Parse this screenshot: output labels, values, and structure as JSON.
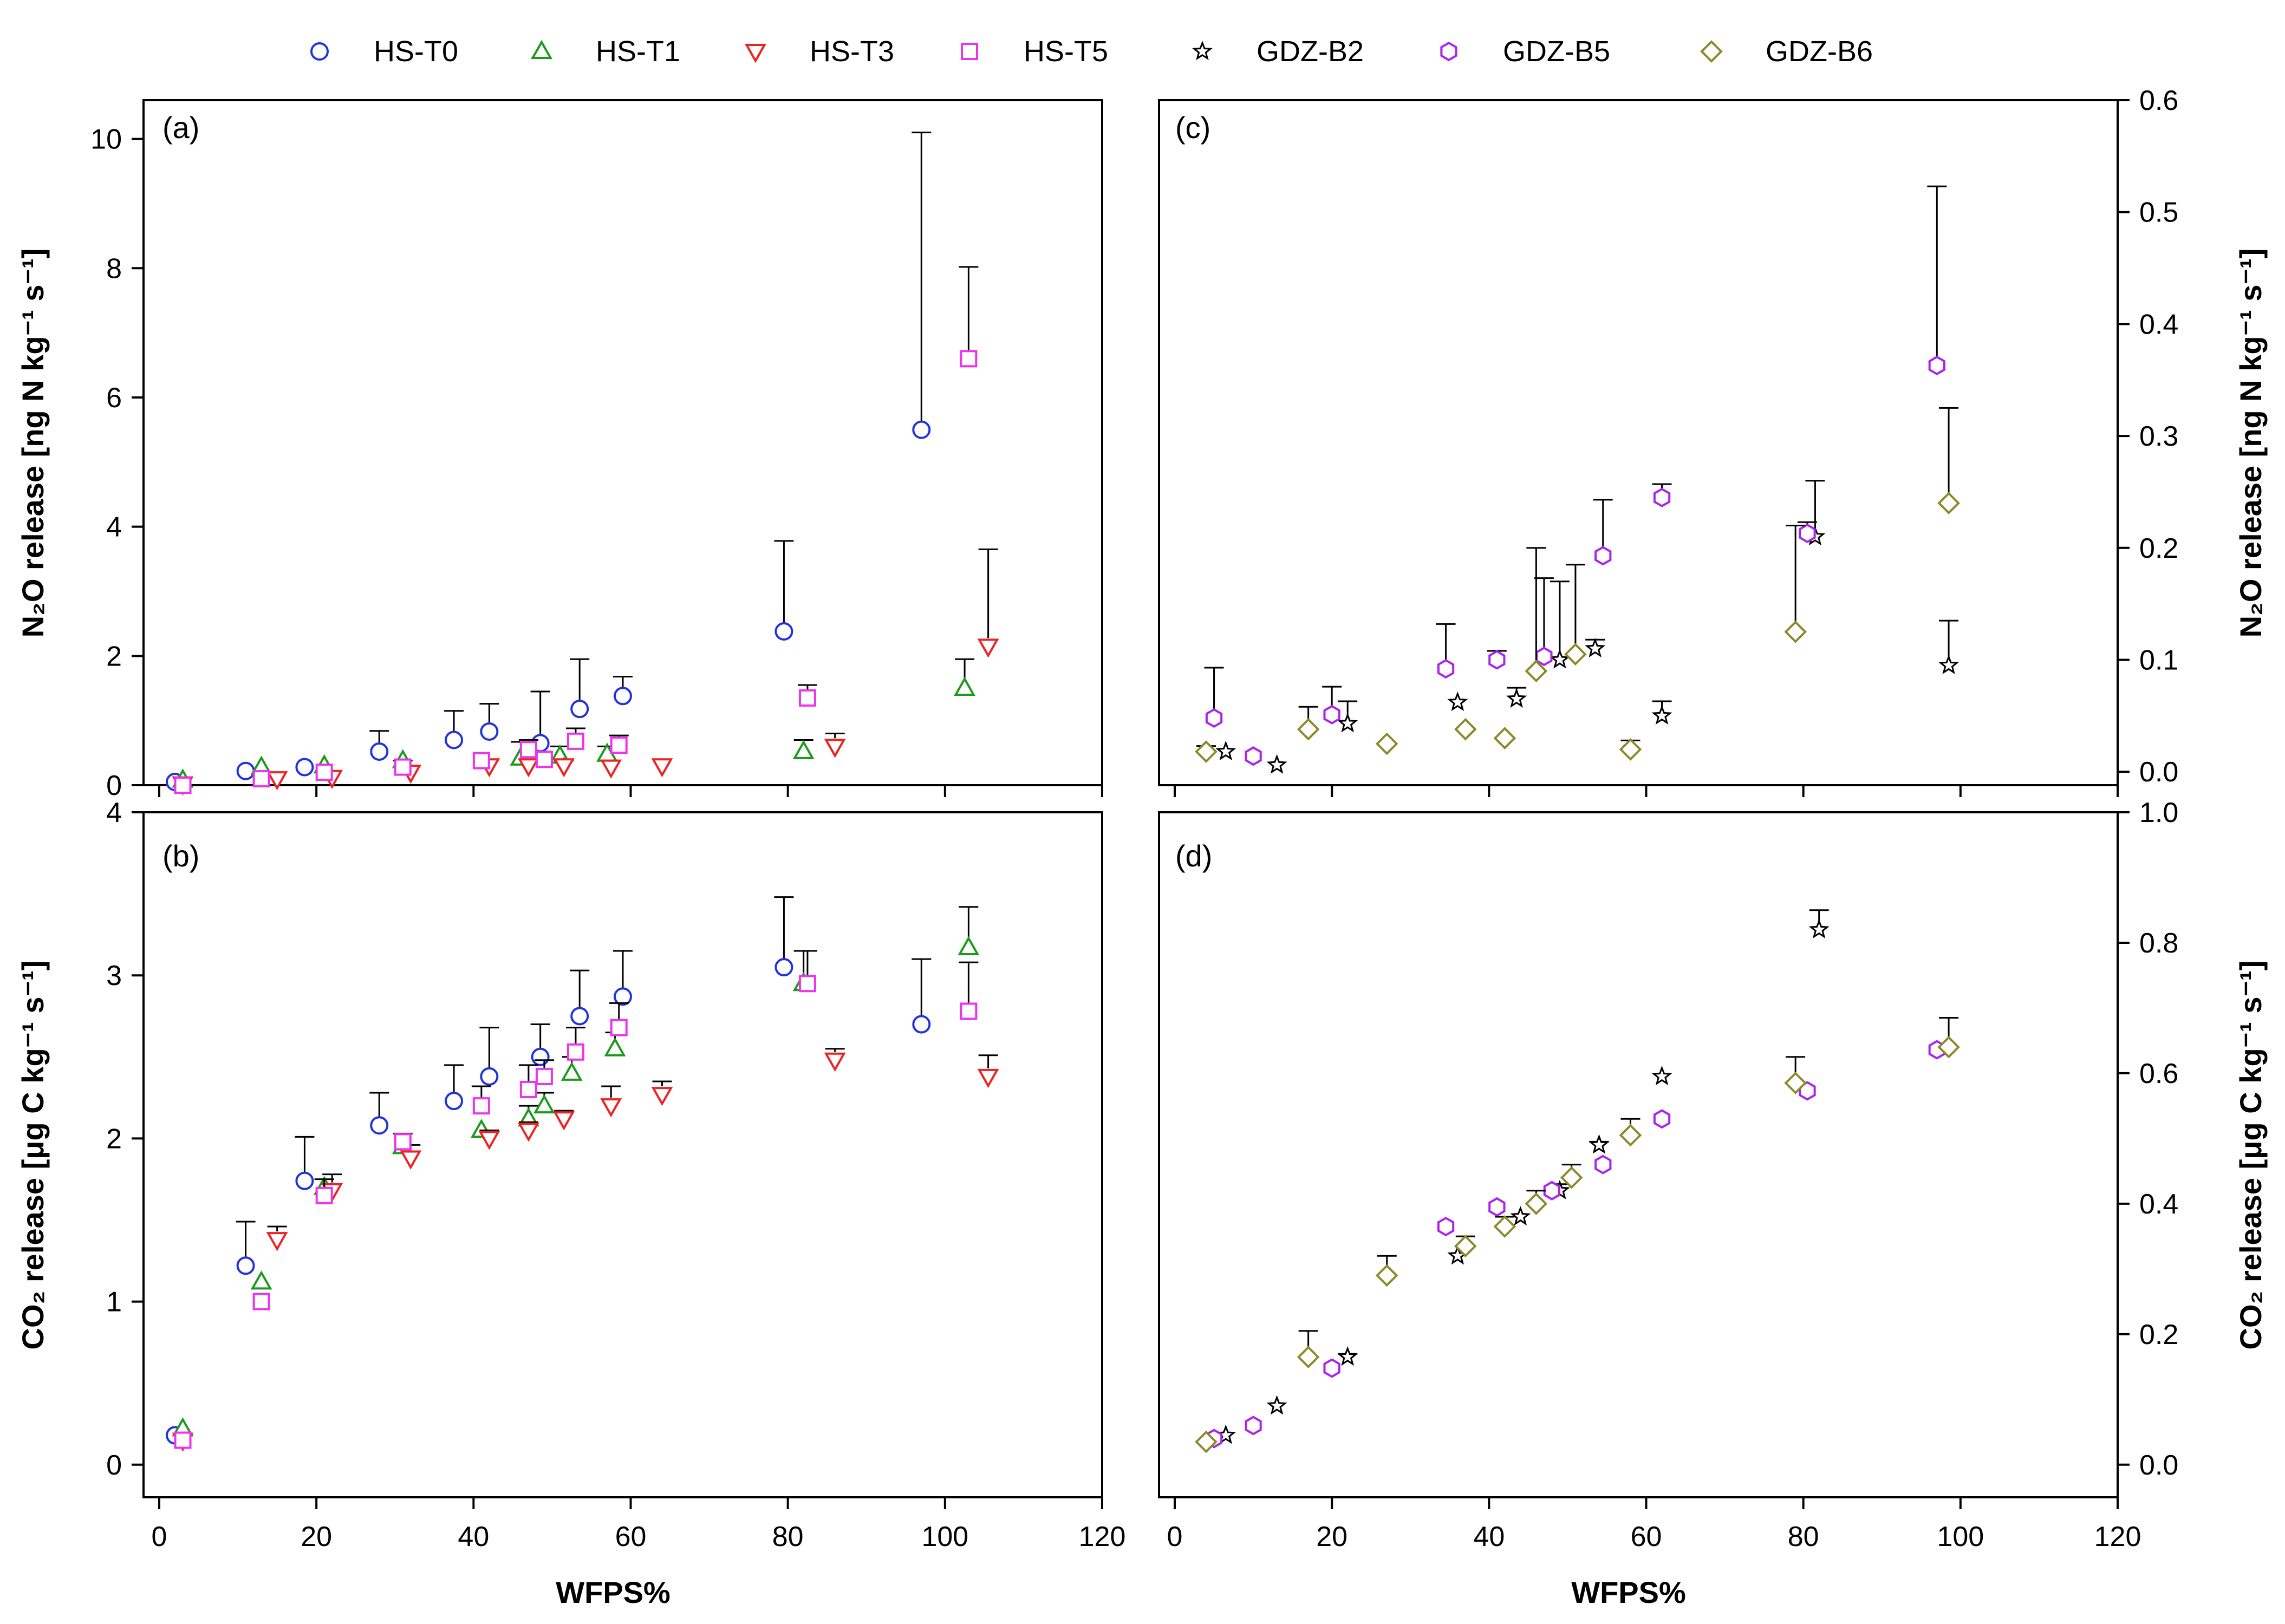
{
  "chart_data": {
    "type": "scatter",
    "legend": {
      "position": "top",
      "entries": [
        {
          "name": "HS-T0",
          "marker": "circle",
          "color": "#2233dd"
        },
        {
          "name": "HS-T1",
          "marker": "triangle-up",
          "color": "#1a9a1a"
        },
        {
          "name": "HS-T3",
          "marker": "triangle-down",
          "color": "#ee2222"
        },
        {
          "name": "HS-T5",
          "marker": "square",
          "color": "#ee33ee"
        },
        {
          "name": "GDZ-B2",
          "marker": "star",
          "color": "#000000"
        },
        {
          "name": "GDZ-B5",
          "marker": "hexagon",
          "color": "#aa22ee"
        },
        {
          "name": "GDZ-B6",
          "marker": "diamond",
          "color": "#8a8a2a"
        }
      ]
    },
    "shared_xlabel": "WFPS%",
    "panels": [
      {
        "id": "a",
        "label": "(a)",
        "ylabel": "N₂O release [ng N kg⁻¹ s⁻¹]",
        "xlim": [
          0,
          120
        ],
        "ylim": [
          0,
          10.6
        ],
        "xticks": [
          "0",
          "20",
          "40",
          "60",
          "80",
          "100",
          "120"
        ],
        "yticks": [
          "0",
          "2",
          "4",
          "6",
          "8",
          "10"
        ],
        "series": [
          {
            "name": "HS-T0",
            "points": [
              [
                2,
                0.05,
                0
              ],
              [
                11,
                0.22,
                0
              ],
              [
                18.5,
                0.28,
                0
              ],
              [
                28,
                0.52,
                0.32
              ],
              [
                37.5,
                0.7,
                0.45
              ],
              [
                42,
                0.83,
                0.43
              ],
              [
                48.5,
                0.65,
                0.8
              ],
              [
                53.5,
                1.18,
                0.77
              ],
              [
                59,
                1.38,
                0.3
              ],
              [
                79.5,
                2.38,
                1.4
              ],
              [
                97,
                5.5,
                4.6
              ]
            ]
          },
          {
            "name": "HS-T1",
            "points": [
              [
                3,
                0.08,
                0
              ],
              [
                13,
                0.28,
                0
              ],
              [
                21,
                0.3,
                0
              ],
              [
                31,
                0.38,
                0
              ],
              [
                46,
                0.42,
                0.25
              ],
              [
                51,
                0.45,
                0.15
              ],
              [
                57,
                0.48,
                0.12
              ],
              [
                82,
                0.52,
                0.18
              ],
              [
                102.5,
                1.5,
                0.45
              ]
            ]
          },
          {
            "name": "HS-T3",
            "points": [
              [
                3,
                0.02,
                0
              ],
              [
                15,
                0.1,
                0
              ],
              [
                22,
                0.12,
                0
              ],
              [
                32,
                0.2,
                0
              ],
              [
                42,
                0.3,
                0
              ],
              [
                47,
                0.3,
                0
              ],
              [
                51.5,
                0.3,
                0.08
              ],
              [
                57.5,
                0.28,
                0
              ],
              [
                64,
                0.3,
                0
              ],
              [
                86,
                0.6,
                0.2
              ],
              [
                105.5,
                2.15,
                1.5
              ]
            ]
          },
          {
            "name": "HS-T5",
            "points": [
              [
                3,
                0.0,
                0
              ],
              [
                13,
                0.1,
                0
              ],
              [
                21,
                0.2,
                0
              ],
              [
                31,
                0.28,
                0.1
              ],
              [
                41,
                0.38,
                0
              ],
              [
                47,
                0.55,
                0.15
              ],
              [
                49,
                0.4,
                0
              ],
              [
                53,
                0.68,
                0.2
              ],
              [
                58.5,
                0.62,
                0.15
              ],
              [
                82.5,
                1.35,
                0.2
              ],
              [
                103,
                6.6,
                1.42
              ]
            ]
          }
        ]
      },
      {
        "id": "b",
        "label": "(b)",
        "ylabel": "CO₂ release [μg C kg⁻¹ s⁻¹]",
        "xlim": [
          0,
          120
        ],
        "ylim": [
          -0.2,
          4
        ],
        "xticks": [
          "0",
          "20",
          "40",
          "60",
          "80",
          "100",
          "120"
        ],
        "yticks": [
          "0",
          "1",
          "2",
          "3",
          "4"
        ],
        "series": [
          {
            "name": "HS-T0",
            "points": [
              [
                2,
                0.18,
                0
              ],
              [
                11,
                1.22,
                0.27
              ],
              [
                18.5,
                1.74,
                0.27
              ],
              [
                28,
                2.08,
                0.2
              ],
              [
                37.5,
                2.23,
                0.22
              ],
              [
                42,
                2.38,
                0.3
              ],
              [
                48.5,
                2.5,
                0.2
              ],
              [
                53.5,
                2.75,
                0.28
              ],
              [
                59,
                2.87,
                0.28
              ],
              [
                79.5,
                3.05,
                0.43
              ],
              [
                97,
                2.7,
                0.4
              ]
            ]
          },
          {
            "name": "HS-T1",
            "points": [
              [
                3,
                0.22,
                0
              ],
              [
                13,
                1.12,
                0
              ],
              [
                21,
                1.7,
                0
              ],
              [
                31,
                1.95,
                0
              ],
              [
                41,
                2.05,
                0
              ],
              [
                47,
                2.12,
                0.08
              ],
              [
                49,
                2.2,
                0.08
              ],
              [
                52.5,
                2.4,
                0.1
              ],
              [
                58,
                2.55,
                0.1
              ],
              [
                82,
                2.95,
                0.2
              ],
              [
                103,
                3.17,
                0.25
              ]
            ]
          },
          {
            "name": "HS-T3",
            "points": [
              [
                3,
                0.15,
                0
              ],
              [
                15,
                1.38,
                0.08
              ],
              [
                22,
                1.68,
                0.1
              ],
              [
                32,
                1.88,
                0.08
              ],
              [
                42,
                2.0,
                0.05
              ],
              [
                47,
                2.05,
                0.05
              ],
              [
                51.5,
                2.12,
                0.05
              ],
              [
                57.5,
                2.2,
                0.12
              ],
              [
                64,
                2.27,
                0.08
              ],
              [
                86,
                2.48,
                0.07
              ],
              [
                105.5,
                2.38,
                0.13
              ]
            ]
          },
          {
            "name": "HS-T5",
            "points": [
              [
                3,
                0.15,
                0
              ],
              [
                13,
                1.0,
                0
              ],
              [
                21,
                1.65,
                0.1
              ],
              [
                31,
                1.98,
                0.05
              ],
              [
                41,
                2.2,
                0.12
              ],
              [
                47,
                2.3,
                0.15
              ],
              [
                49,
                2.38,
                0.1
              ],
              [
                53,
                2.53,
                0.15
              ],
              [
                58.5,
                2.68,
                0.15
              ],
              [
                82.5,
                2.95,
                0.2
              ],
              [
                103,
                2.78,
                0.3
              ]
            ]
          }
        ]
      },
      {
        "id": "c",
        "label": "(c)",
        "ylabel": "N₂O release [ng N kg⁻¹ s⁻¹]",
        "xlim": [
          0,
          120
        ],
        "ylim": [
          -0.012,
          0.6
        ],
        "xticks": [
          "0",
          "20",
          "40",
          "60",
          "80",
          "100",
          "120"
        ],
        "yticks": [
          "0.0",
          "0.1",
          "0.2",
          "0.3",
          "0.4",
          "0.5",
          "0.6"
        ],
        "series": [
          {
            "name": "GDZ-B2",
            "points": [
              [
                6.5,
                0.018,
                0
              ],
              [
                13,
                0.006,
                0
              ],
              [
                22,
                0.043,
                0.02
              ],
              [
                36,
                0.062,
                0
              ],
              [
                43.5,
                0.065,
                0.01
              ],
              [
                49,
                0.1,
                0.07
              ],
              [
                53.5,
                0.11,
                0.008
              ],
              [
                62,
                0.05,
                0.013
              ],
              [
                81.5,
                0.21,
                0.05
              ],
              [
                98.5,
                0.095,
                0.04
              ]
            ]
          },
          {
            "name": "GDZ-B5",
            "points": [
              [
                5,
                0.048,
                0.045
              ],
              [
                10,
                0.014,
                0
              ],
              [
                20,
                0.051,
                0.025
              ],
              [
                34.5,
                0.092,
                0.04
              ],
              [
                41,
                0.1,
                0.008
              ],
              [
                47,
                0.103,
                0.07
              ],
              [
                54.5,
                0.193,
                0.05
              ],
              [
                62,
                0.245,
                0.012
              ],
              [
                80.5,
                0.213,
                0.01
              ],
              [
                97,
                0.363,
                0.16
              ]
            ]
          },
          {
            "name": "GDZ-B6",
            "points": [
              [
                4,
                0.018,
                0.005
              ],
              [
                17,
                0.038,
                0.02
              ],
              [
                27,
                0.025,
                0
              ],
              [
                37,
                0.038,
                0
              ],
              [
                42,
                0.03,
                0
              ],
              [
                46,
                0.09,
                0.11
              ],
              [
                51,
                0.105,
                0.08
              ],
              [
                58,
                0.02,
                0.008
              ],
              [
                79,
                0.125,
                0.095
              ],
              [
                98.5,
                0.24,
                0.085
              ]
            ]
          }
        ]
      },
      {
        "id": "d",
        "label": "(d)",
        "ylabel": "CO₂ release [μg C kg⁻¹ s⁻¹]",
        "xlim": [
          0,
          120
        ],
        "ylim": [
          -0.05,
          1.0
        ],
        "xticks": [
          "0",
          "20",
          "40",
          "60",
          "80",
          "100",
          "120"
        ],
        "yticks": [
          "0.0",
          "0.2",
          "0.4",
          "0.6",
          "0.8",
          "1.0"
        ],
        "series": [
          {
            "name": "GDZ-B2",
            "points": [
              [
                6.5,
                0.045,
                0
              ],
              [
                13,
                0.09,
                0
              ],
              [
                22,
                0.165,
                0.005
              ],
              [
                36,
                0.32,
                0
              ],
              [
                44,
                0.38,
                0
              ],
              [
                49,
                0.42,
                0.01
              ],
              [
                54,
                0.49,
                0.005
              ],
              [
                62,
                0.595,
                0
              ],
              [
                82,
                0.82,
                0.03
              ]
            ]
          },
          {
            "name": "GDZ-B5",
            "points": [
              [
                5,
                0.04,
                0
              ],
              [
                10,
                0.06,
                0
              ],
              [
                20,
                0.148,
                0
              ],
              [
                34.5,
                0.365,
                0
              ],
              [
                41,
                0.395,
                0
              ],
              [
                48,
                0.42,
                0
              ],
              [
                54.5,
                0.46,
                0
              ],
              [
                62,
                0.53,
                0
              ],
              [
                80.5,
                0.573,
                0
              ],
              [
                97,
                0.636,
                0
              ]
            ]
          },
          {
            "name": "GDZ-B6",
            "points": [
              [
                4,
                0.035,
                0
              ],
              [
                17,
                0.165,
                0.04
              ],
              [
                27,
                0.29,
                0.03
              ],
              [
                37,
                0.335,
                0.015
              ],
              [
                42,
                0.365,
                0.015
              ],
              [
                46,
                0.4,
                0.02
              ],
              [
                50.5,
                0.44,
                0.02
              ],
              [
                58,
                0.505,
                0.025
              ],
              [
                79,
                0.585,
                0.04
              ],
              [
                98.5,
                0.64,
                0.045
              ]
            ]
          }
        ]
      }
    ]
  }
}
